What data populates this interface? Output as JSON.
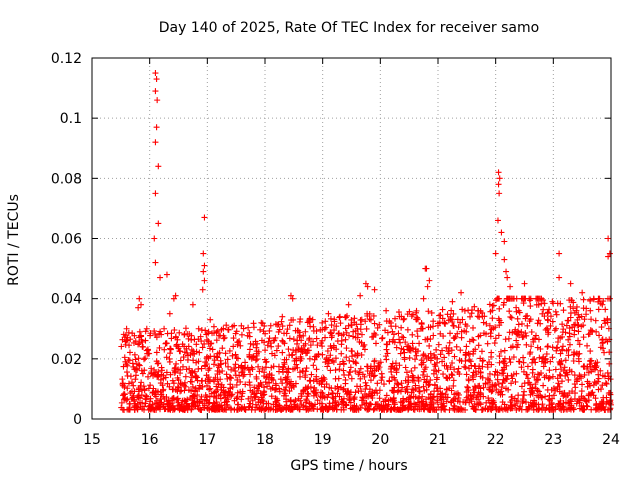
{
  "chart_data": {
    "type": "scatter",
    "title": "Day 140 of 2025, Rate Of TEC Index for receiver samo",
    "xlabel": "GPS time / hours",
    "ylabel": "ROTI / TECUs",
    "xlim": [
      15,
      24
    ],
    "ylim": [
      0,
      0.12
    ],
    "x_ticks": [
      "15",
      "16",
      "17",
      "18",
      "19",
      "20",
      "21",
      "22",
      "23",
      "24"
    ],
    "y_ticks": [
      "0",
      "0.02",
      "0.04",
      "0.06",
      "0.08",
      "0.1",
      "0.12"
    ],
    "grid": true,
    "marker": "+",
    "color": "#ff0000",
    "series": [
      {
        "name": "ROTI",
        "points": [
          [
            16.1,
            0.115
          ],
          [
            16.12,
            0.113
          ],
          [
            16.1,
            0.109
          ],
          [
            16.13,
            0.106
          ],
          [
            16.12,
            0.097
          ],
          [
            16.1,
            0.092
          ],
          [
            16.15,
            0.084
          ],
          [
            16.1,
            0.075
          ],
          [
            16.15,
            0.065
          ],
          [
            16.08,
            0.06
          ],
          [
            16.1,
            0.052
          ],
          [
            16.18,
            0.047
          ],
          [
            16.3,
            0.048
          ],
          [
            16.45,
            0.041
          ],
          [
            16.42,
            0.04
          ],
          [
            15.82,
            0.04
          ],
          [
            15.85,
            0.038
          ],
          [
            15.8,
            0.037
          ],
          [
            16.35,
            0.035
          ],
          [
            16.25,
            0.03
          ],
          [
            16.95,
            0.067
          ],
          [
            16.93,
            0.055
          ],
          [
            16.95,
            0.051
          ],
          [
            16.93,
            0.049
          ],
          [
            16.95,
            0.046
          ],
          [
            16.92,
            0.043
          ],
          [
            16.75,
            0.038
          ],
          [
            17.05,
            0.033
          ],
          [
            16.85,
            0.03
          ],
          [
            18.45,
            0.041
          ],
          [
            18.48,
            0.04
          ],
          [
            18.3,
            0.034
          ],
          [
            18.1,
            0.031
          ],
          [
            19.45,
            0.038
          ],
          [
            19.75,
            0.045
          ],
          [
            19.78,
            0.044
          ],
          [
            19.9,
            0.043
          ],
          [
            19.65,
            0.041
          ],
          [
            20.8,
            0.05
          ],
          [
            20.78,
            0.05
          ],
          [
            20.85,
            0.046
          ],
          [
            20.82,
            0.044
          ],
          [
            20.75,
            0.04
          ],
          [
            21.4,
            0.042
          ],
          [
            21.25,
            0.039
          ],
          [
            21.7,
            0.036
          ],
          [
            22.05,
            0.082
          ],
          [
            22.07,
            0.08
          ],
          [
            22.05,
            0.078
          ],
          [
            22.06,
            0.075
          ],
          [
            22.04,
            0.066
          ],
          [
            22.1,
            0.062
          ],
          [
            22.15,
            0.059
          ],
          [
            22.0,
            0.055
          ],
          [
            22.15,
            0.053
          ],
          [
            22.18,
            0.049
          ],
          [
            22.2,
            0.047
          ],
          [
            22.25,
            0.044
          ],
          [
            22.45,
            0.04
          ],
          [
            22.5,
            0.045
          ],
          [
            22.7,
            0.04
          ],
          [
            23.1,
            0.055
          ],
          [
            23.1,
            0.047
          ],
          [
            23.3,
            0.045
          ],
          [
            23.5,
            0.042
          ],
          [
            23.95,
            0.06
          ],
          [
            23.98,
            0.055
          ],
          [
            23.95,
            0.054
          ],
          [
            23.7,
            0.04
          ],
          [
            23.85,
            0.038
          ],
          [
            15.6,
            0.03
          ],
          [
            15.95,
            0.03
          ],
          [
            16.6,
            0.028
          ],
          [
            17.3,
            0.027
          ],
          [
            17.6,
            0.028
          ],
          [
            18.7,
            0.029
          ],
          [
            19.1,
            0.035
          ],
          [
            19.3,
            0.034
          ],
          [
            20.1,
            0.036
          ],
          [
            20.4,
            0.033
          ],
          [
            21.0,
            0.031
          ],
          [
            21.9,
            0.031
          ],
          [
            22.4,
            0.036
          ],
          [
            22.9,
            0.033
          ],
          [
            23.4,
            0.036
          ]
        ]
      }
    ],
    "band": {
      "description": "dense cloud of ROTI values between 15.5 and 24 hours",
      "x_range": [
        15.5,
        24
      ],
      "base_min": 0.003,
      "typical_max": 0.03
    }
  }
}
